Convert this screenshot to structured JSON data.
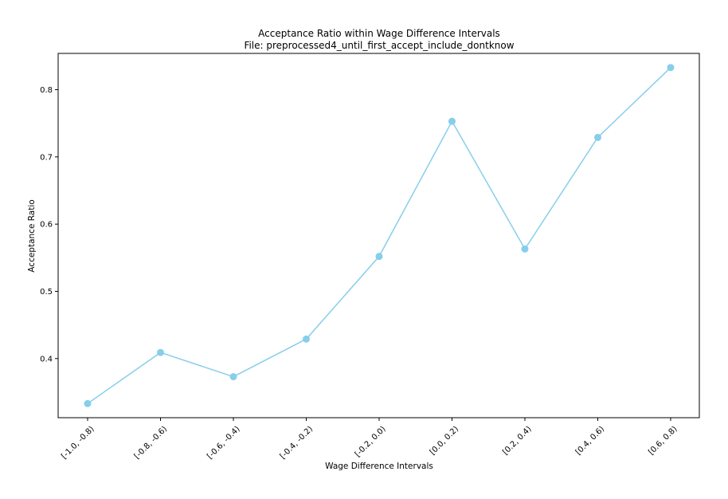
{
  "chart_data": {
    "type": "line",
    "title": "Acceptance Ratio within Wage Difference Intervals",
    "subtitle": "File: preprocessed4_until_first_accept_include_dontknow",
    "xlabel": "Wage Difference Intervals",
    "ylabel": "Acceptance Ratio",
    "categories": [
      "[-1.0, -0.8)",
      "[-0.8, -0.6)",
      "[-0.6, -0.4)",
      "[-0.4, -0.2)",
      "[-0.2, 0.0)",
      "[0.0, 0.2)",
      "[0.2, 0.4)",
      "[0.4, 0.6)",
      "[0.6, 0.8)"
    ],
    "values": [
      0.333,
      0.409,
      0.373,
      0.429,
      0.552,
      0.753,
      0.563,
      0.729,
      0.833
    ],
    "ylim": [
      0.312,
      0.854
    ],
    "yticks": [
      "0.4",
      "0.5",
      "0.6",
      "0.7",
      "0.8"
    ],
    "grid": false,
    "colors": {
      "series": "#87CEEB"
    }
  }
}
